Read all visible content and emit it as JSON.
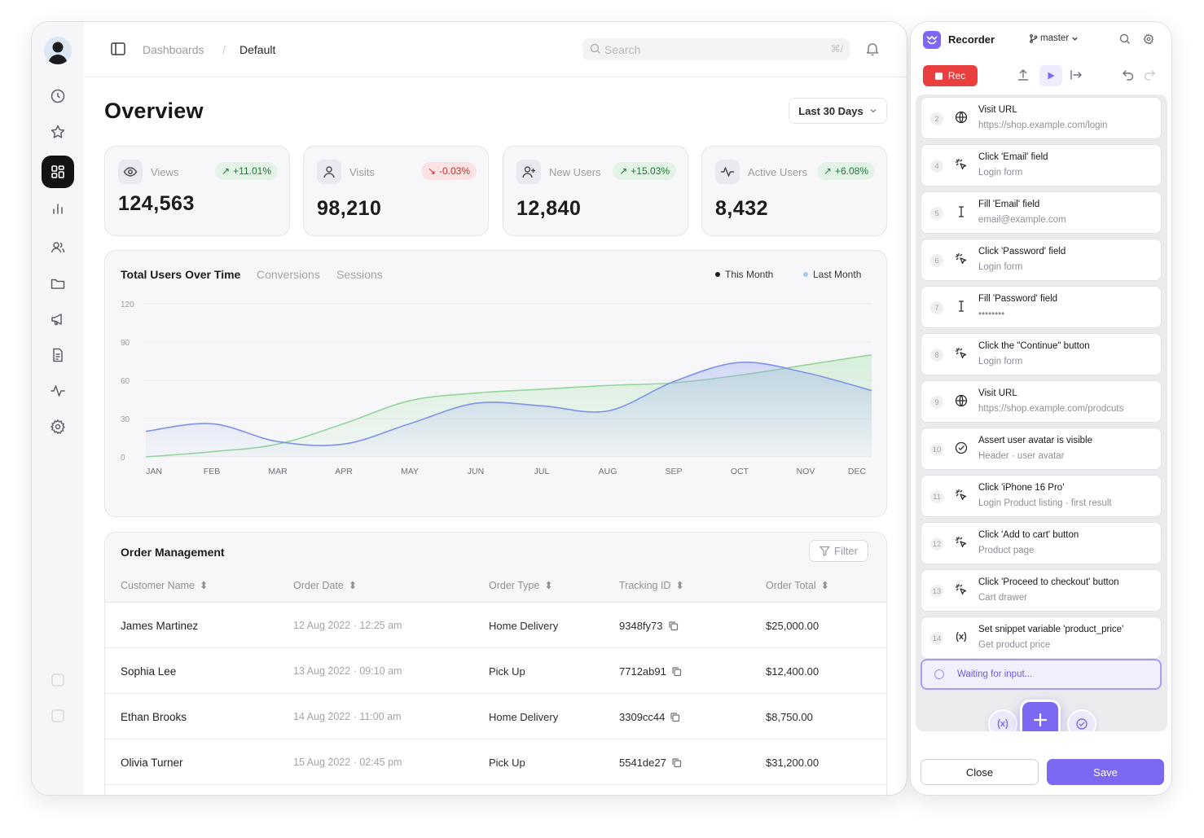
{
  "dashboard": {
    "breadcrumb": [
      "Dashboards",
      "Default"
    ],
    "breadcrumb_sep": "/",
    "search": {
      "placeholder": "Search",
      "shortcut": "⌘/"
    },
    "title": "Overview",
    "date_range": "Last 30 Days",
    "nav_icons": [
      "clock-icon",
      "star-icon",
      "dashboard-icon",
      "bar-chart-icon",
      "users-icon",
      "folder-icon",
      "megaphone-icon",
      "document-icon",
      "activity-icon",
      "settings-icon"
    ],
    "stats": [
      {
        "label": "Views",
        "value": "124,563",
        "change": "+11.01%",
        "trend": "up",
        "icon": "eye-icon"
      },
      {
        "label": "Visits",
        "value": "98,210",
        "change": "-0.03%",
        "trend": "down",
        "icon": "user-icon"
      },
      {
        "label": "New Users",
        "value": "12,840",
        "change": "+15.03%",
        "trend": "up",
        "icon": "user-plus-icon"
      },
      {
        "label": "Active Users",
        "value": "8,432",
        "change": "+6.08%",
        "trend": "up",
        "icon": "pulse-icon"
      }
    ]
  },
  "chart_tabs": {
    "active": "Total Users Over Time",
    "others": [
      "Conversions",
      "Sessions"
    ]
  },
  "chart_data": {
    "type": "area",
    "categories": [
      "JAN",
      "FEB",
      "MAR",
      "APR",
      "MAY",
      "JUN",
      "JUL",
      "AUG",
      "SEP",
      "OCT",
      "NOV",
      "DEC"
    ],
    "yticks": [
      "120",
      "90",
      "60",
      "30",
      "0"
    ],
    "ylim": [
      0,
      120
    ],
    "grid": true,
    "legend_position": "top-right",
    "series": [
      {
        "name": "This Month",
        "color": "#7f93e8",
        "values": [
          20,
          26,
          12,
          10,
          26,
          42,
          40,
          36,
          59,
          74,
          66,
          52
        ]
      },
      {
        "name": "Last Month",
        "color": "#93d69b",
        "values": [
          0,
          4,
          10,
          26,
          44,
          50,
          53,
          56,
          58,
          64,
          72,
          80
        ]
      }
    ]
  },
  "orders": {
    "title": "Order Management",
    "filter_label": "Filter",
    "columns": [
      "Customer Name",
      "Order Date",
      "Order Type",
      "Tracking ID",
      "Order Total"
    ],
    "rows": [
      {
        "name": "James Martinez",
        "date": "12 Aug 2022 · 12:25 am",
        "type": "Home Delivery",
        "tracking": "9348fy73",
        "total": "$25,000.00"
      },
      {
        "name": "Sophia Lee",
        "date": "13 Aug 2022 · 09:10 am",
        "type": "Pick Up",
        "tracking": "7712ab91",
        "total": "$12,400.00"
      },
      {
        "name": "Ethan Brooks",
        "date": "14 Aug 2022 · 11:00 am",
        "type": "Home Delivery",
        "tracking": "3309cc44",
        "total": "$8,750.00"
      },
      {
        "name": "Olivia Turner",
        "date": "15 Aug 2022 · 02:45 pm",
        "type": "Pick Up",
        "tracking": "5541de27",
        "total": "$31,200.00"
      }
    ]
  },
  "recorder": {
    "title": "Recorder",
    "branch": "master",
    "rec_label": "Rec",
    "steps": [
      {
        "num": "2",
        "icon": "globe-icon",
        "title": "Visit URL",
        "sub": "https://shop.example.com/login"
      },
      {
        "num": "4",
        "icon": "click-icon",
        "title": "Click 'Email' field",
        "sub": "Login form"
      },
      {
        "num": "5",
        "icon": "text-cursor-icon",
        "title": "Fill 'Email' field",
        "sub": "email@example.com"
      },
      {
        "num": "6",
        "icon": "click-icon",
        "title": "Click 'Password' field",
        "sub": "Login form"
      },
      {
        "num": "7",
        "icon": "text-cursor-icon",
        "title": "Fill 'Password' field",
        "sub": "••••••••"
      },
      {
        "num": "8",
        "icon": "click-icon",
        "title": "Click the \"Continue\" button",
        "sub": "Login form"
      },
      {
        "num": "9",
        "icon": "globe-icon",
        "title": "Visit URL",
        "sub": "https://shop.example.com/prodcuts"
      },
      {
        "num": "10",
        "icon": "check-circle-icon",
        "title": "Assert user avatar is visible",
        "sub": "Header · user avatar"
      },
      {
        "num": "11",
        "icon": "click-icon",
        "title": "Click 'iPhone 16 Pro'",
        "sub": "Login Product listing · first result"
      },
      {
        "num": "12",
        "icon": "click-icon",
        "title": "Click 'Add to cart' button",
        "sub": "Product page"
      },
      {
        "num": "13",
        "icon": "click-icon",
        "title": "Click 'Proceed to checkout' button",
        "sub": "Cart drawer"
      },
      {
        "num": "14",
        "icon": "variable-icon",
        "title": "Set snippet variable 'product_price'",
        "sub": "Get product price"
      }
    ],
    "waiting": "Waiting for input...",
    "close_label": "Close",
    "save_label": "Save"
  }
}
